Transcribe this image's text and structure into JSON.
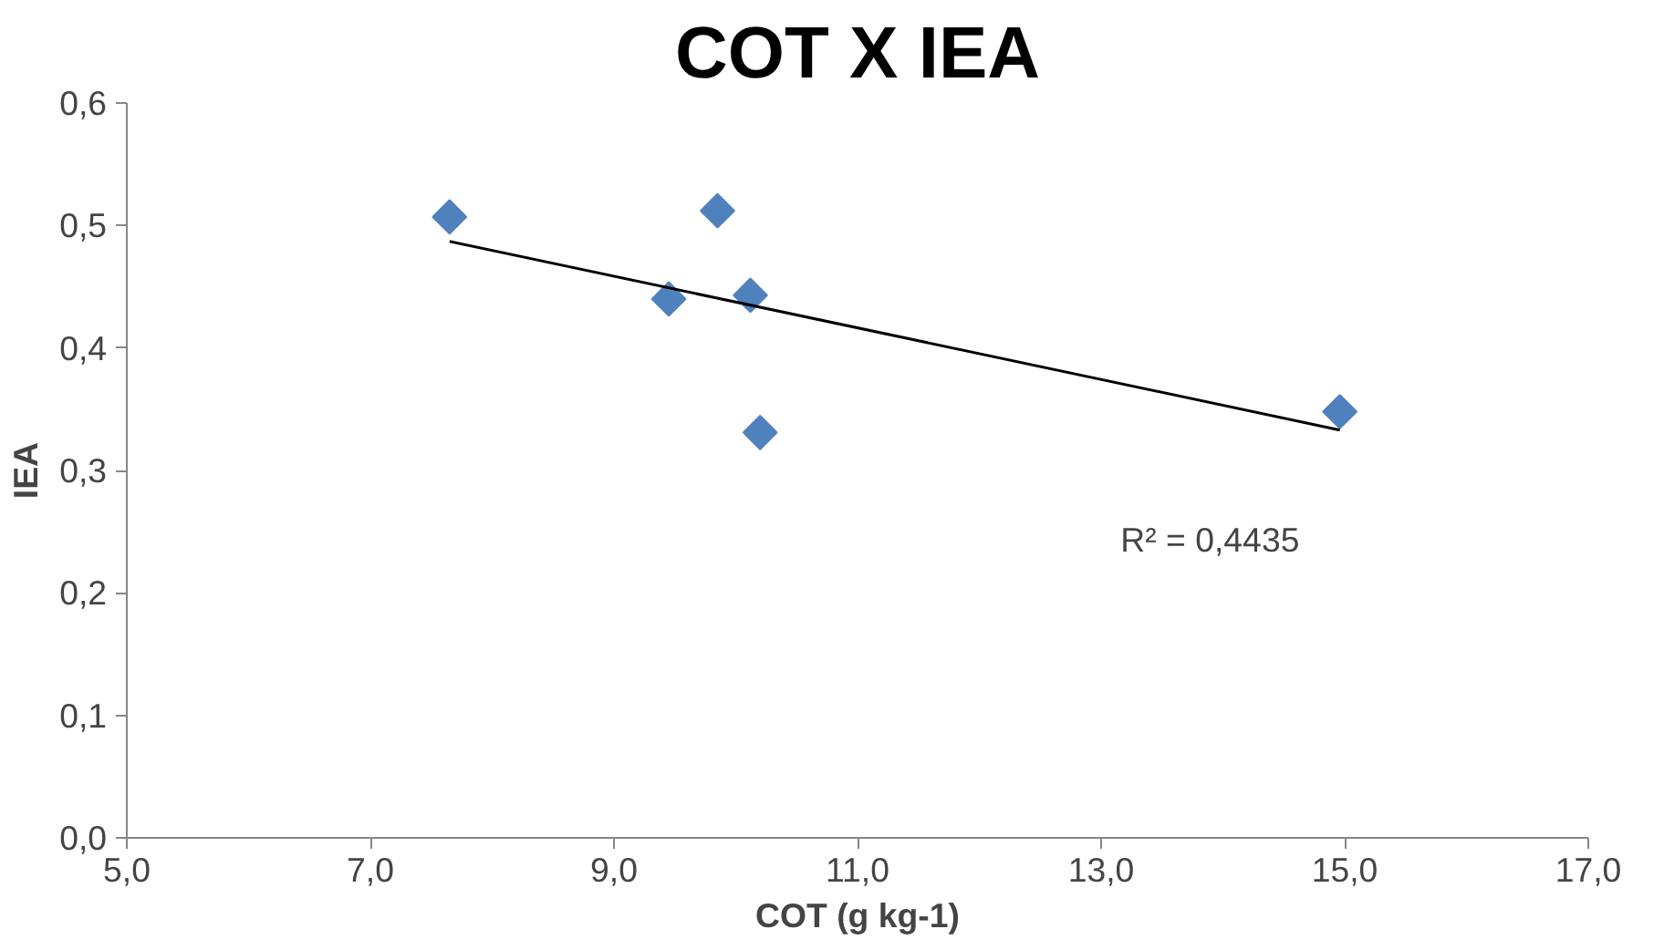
{
  "chart_data": {
    "type": "scatter",
    "title": "COT X IEA",
    "xlabel": "COT (g kg-1)",
    "ylabel": "IEA",
    "series": [
      {
        "color": "#4f81bd",
        "marker": "diamond",
        "x": [
          7.65,
          9.85,
          9.45,
          10.12,
          10.2,
          14.96
        ],
        "values": [
          0.507,
          0.512,
          0.44,
          0.443,
          0.331,
          0.348
        ]
      },
      {
        "type": "line",
        "color": "#000000",
        "marker": "none",
        "x": [
          7.65,
          14.96
        ],
        "values": [
          0.487,
          0.333
        ]
      }
    ],
    "annotations": [
      "R² = 0,4435"
    ],
    "xlim": [
      5,
      17
    ],
    "ylim": [
      0,
      0.6
    ],
    "xticks": [
      {
        "value": 5,
        "label": "5,0"
      },
      {
        "value": 7,
        "label": "7,0"
      },
      {
        "value": 9,
        "label": "9,0"
      },
      {
        "value": 11,
        "label": "11,0"
      },
      {
        "value": 13,
        "label": "13,0"
      },
      {
        "value": 15,
        "label": "15,0"
      },
      {
        "value": 17,
        "label": "17,0"
      }
    ],
    "yticks": [
      {
        "value": 0,
        "label": "0,0"
      },
      {
        "value": 0.1,
        "label": "0,1"
      },
      {
        "value": 0.2,
        "label": "0,2"
      },
      {
        "value": 0.3,
        "label": "0,3"
      },
      {
        "value": 0.4,
        "label": "0,4"
      },
      {
        "value": 0.5,
        "label": "0,5"
      },
      {
        "value": 0.6,
        "label": "0,6"
      }
    ],
    "grid": false
  }
}
